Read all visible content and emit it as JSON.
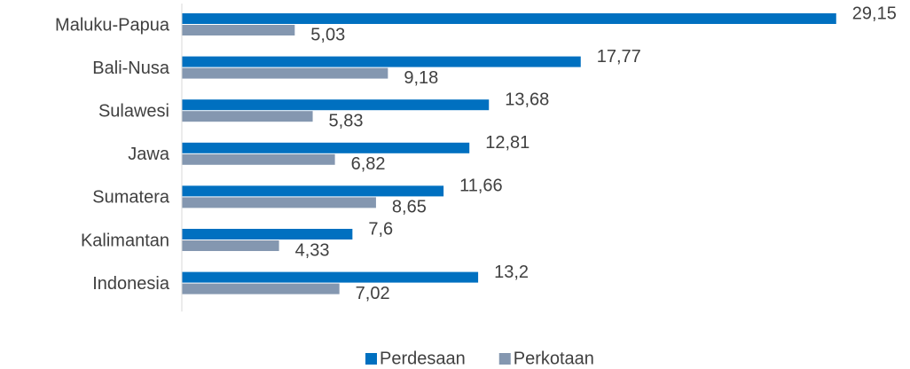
{
  "chart_data": {
    "type": "hbar",
    "categories": [
      "Maluku-Papua",
      "Bali-Nusa",
      "Sulawesi",
      "Jawa",
      "Sumatera",
      "Kalimantan",
      "Indonesia"
    ],
    "series": [
      {
        "name": "Perdesaan",
        "color": "#0070c0",
        "values": [
          29.15,
          17.77,
          13.68,
          12.81,
          11.66,
          7.6,
          13.2
        ],
        "value_labels": [
          "29,15",
          "17,77",
          "13,68",
          "12,81",
          "11,66",
          "7,6",
          "13,2"
        ]
      },
      {
        "name": "Perkotaan",
        "color": "#8497b0",
        "values": [
          5.03,
          9.18,
          5.83,
          6.82,
          8.65,
          4.33,
          7.02
        ],
        "value_labels": [
          "5,03",
          "9,18",
          "5,83",
          "6,82",
          "8,65",
          "4,33",
          "7,02"
        ]
      }
    ],
    "xlim": [
      0,
      30
    ],
    "legend": "bottom"
  }
}
